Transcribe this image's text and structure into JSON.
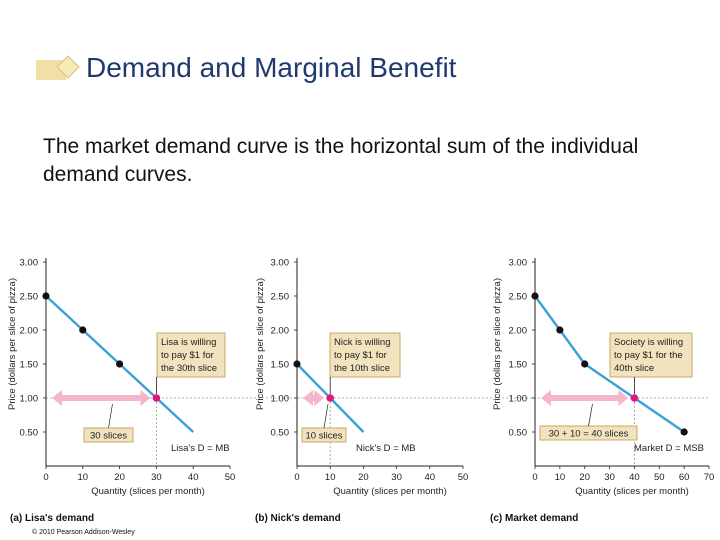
{
  "slide": {
    "title": "Demand and Marginal Benefit",
    "body": "The market demand curve is the horizontal sum of the individual demand curves.",
    "copyright": "© 2010 Pearson Addison-Wesley"
  },
  "colors": {
    "title": "#1f3a6e",
    "title_bullet_back": "#f2dfa6",
    "title_bullet_diamond": "#f7e9b8",
    "curve": "#3b9fd8",
    "point": "#111111",
    "highlight_point": "#e0187a",
    "arrow": "#f4b6cc",
    "callout_fill": "#f2e3bf",
    "callout_border": "#c7a96a",
    "guide_line": "#999999"
  },
  "chart_data": [
    {
      "type": "line",
      "panel_label": "(a) Lisa's demand",
      "ylabel": "Price (dollars per slice of pizza)",
      "xlabel": "Quantity (slices per month)",
      "xlim": [
        0,
        50
      ],
      "ylim": [
        0,
        3.0
      ],
      "xticks": [
        "0",
        "10",
        "20",
        "30",
        "40",
        "50"
      ],
      "yticks": [
        "0.50",
        "1.00",
        "1.50",
        "2.00",
        "2.50",
        "3.00"
      ],
      "series": [
        {
          "name": "Lisa's D = MB",
          "x": [
            0,
            10,
            20,
            30,
            40
          ],
          "y": [
            2.5,
            2.0,
            1.5,
            1.0,
            0.5
          ]
        }
      ],
      "points": [
        [
          0,
          2.5
        ],
        [
          10,
          2.0
        ],
        [
          20,
          1.5
        ]
      ],
      "highlight": [
        30,
        1.0
      ],
      "callout": [
        "Lisa is willing",
        "to pay $1 for",
        "the 30th slice"
      ],
      "quantity_label": "30 slices",
      "curve_label": "Lisa's D = MB"
    },
    {
      "type": "line",
      "panel_label": "(b) Nick's demand",
      "ylabel": "Price (dollars per slice of pizza)",
      "xlabel": "Quantity (slices per month)",
      "xlim": [
        0,
        50
      ],
      "ylim": [
        0,
        3.0
      ],
      "xticks": [
        "0",
        "10",
        "20",
        "30",
        "40",
        "50"
      ],
      "yticks": [
        "0.50",
        "1.00",
        "1.50",
        "2.00",
        "2.50",
        "3.00"
      ],
      "series": [
        {
          "name": "Nick's D = MB",
          "x": [
            0,
            10,
            20
          ],
          "y": [
            1.5,
            1.0,
            0.5
          ]
        }
      ],
      "points": [
        [
          0,
          1.5
        ]
      ],
      "highlight": [
        10,
        1.0
      ],
      "callout": [
        "Nick is willing",
        "to pay $1 for",
        "the 10th slice"
      ],
      "quantity_label": "10 slices",
      "curve_label": "Nick's D = MB"
    },
    {
      "type": "line",
      "panel_label": "(c) Market demand",
      "ylabel": "Price (dollars per slice of pizza)",
      "xlabel": "Quantity (slices per month)",
      "xlim": [
        0,
        70
      ],
      "ylim": [
        0,
        3.0
      ],
      "xticks": [
        "0",
        "10",
        "20",
        "30",
        "40",
        "50",
        "60",
        "70"
      ],
      "yticks": [
        "0.50",
        "1.00",
        "1.50",
        "2.00",
        "2.50",
        "3.00"
      ],
      "series": [
        {
          "name": "Market D = MSB",
          "x": [
            0,
            10,
            20,
            40,
            60
          ],
          "y": [
            2.5,
            2.0,
            1.5,
            1.0,
            0.5
          ]
        }
      ],
      "points": [
        [
          0,
          2.5
        ],
        [
          10,
          2.0
        ],
        [
          20,
          1.5
        ],
        [
          60,
          0.5
        ]
      ],
      "highlight": [
        40,
        1.0
      ],
      "callout": [
        "Society is willing",
        "to pay $1 for the",
        "40th slice"
      ],
      "quantity_label": "30 + 10 = 40 slices",
      "curve_label": "Market D = MSB"
    }
  ]
}
